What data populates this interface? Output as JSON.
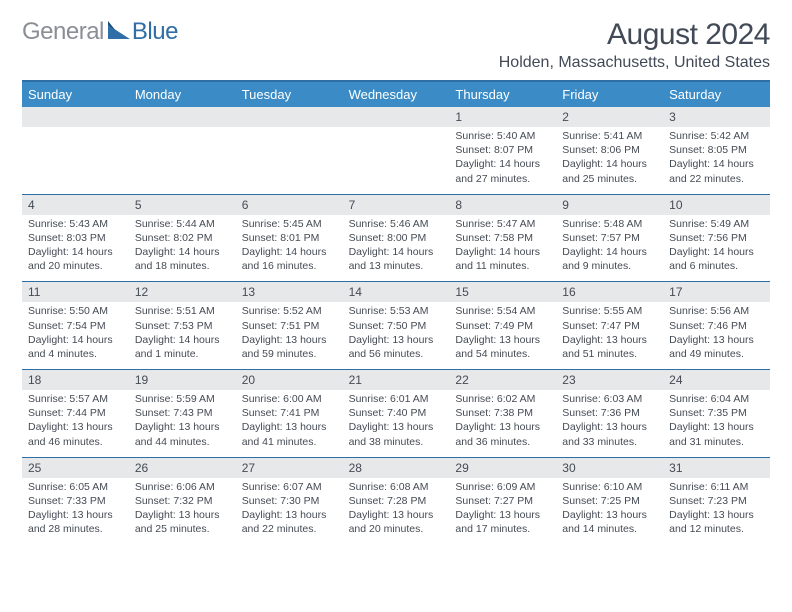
{
  "brand": {
    "general": "General",
    "blue": "Blue"
  },
  "title": "August 2024",
  "location": "Holden, Massachusetts, United States",
  "colors": {
    "header_bg": "#3b8cc6",
    "divider": "#2d6ea5",
    "date_bg": "#e7e8ea",
    "text": "#454b54",
    "logo_gray": "#8a8f96",
    "logo_blue": "#2f6ea7"
  },
  "weekdays": [
    "Sunday",
    "Monday",
    "Tuesday",
    "Wednesday",
    "Thursday",
    "Friday",
    "Saturday"
  ],
  "weeks": [
    {
      "dates": [
        "",
        "",
        "",
        "",
        "1",
        "2",
        "3"
      ],
      "cells": [
        {
          "sunrise": "",
          "sunset": "",
          "daylight1": "",
          "daylight2": ""
        },
        {
          "sunrise": "",
          "sunset": "",
          "daylight1": "",
          "daylight2": ""
        },
        {
          "sunrise": "",
          "sunset": "",
          "daylight1": "",
          "daylight2": ""
        },
        {
          "sunrise": "",
          "sunset": "",
          "daylight1": "",
          "daylight2": ""
        },
        {
          "sunrise": "Sunrise: 5:40 AM",
          "sunset": "Sunset: 8:07 PM",
          "daylight1": "Daylight: 14 hours",
          "daylight2": "and 27 minutes."
        },
        {
          "sunrise": "Sunrise: 5:41 AM",
          "sunset": "Sunset: 8:06 PM",
          "daylight1": "Daylight: 14 hours",
          "daylight2": "and 25 minutes."
        },
        {
          "sunrise": "Sunrise: 5:42 AM",
          "sunset": "Sunset: 8:05 PM",
          "daylight1": "Daylight: 14 hours",
          "daylight2": "and 22 minutes."
        }
      ]
    },
    {
      "dates": [
        "4",
        "5",
        "6",
        "7",
        "8",
        "9",
        "10"
      ],
      "cells": [
        {
          "sunrise": "Sunrise: 5:43 AM",
          "sunset": "Sunset: 8:03 PM",
          "daylight1": "Daylight: 14 hours",
          "daylight2": "and 20 minutes."
        },
        {
          "sunrise": "Sunrise: 5:44 AM",
          "sunset": "Sunset: 8:02 PM",
          "daylight1": "Daylight: 14 hours",
          "daylight2": "and 18 minutes."
        },
        {
          "sunrise": "Sunrise: 5:45 AM",
          "sunset": "Sunset: 8:01 PM",
          "daylight1": "Daylight: 14 hours",
          "daylight2": "and 16 minutes."
        },
        {
          "sunrise": "Sunrise: 5:46 AM",
          "sunset": "Sunset: 8:00 PM",
          "daylight1": "Daylight: 14 hours",
          "daylight2": "and 13 minutes."
        },
        {
          "sunrise": "Sunrise: 5:47 AM",
          "sunset": "Sunset: 7:58 PM",
          "daylight1": "Daylight: 14 hours",
          "daylight2": "and 11 minutes."
        },
        {
          "sunrise": "Sunrise: 5:48 AM",
          "sunset": "Sunset: 7:57 PM",
          "daylight1": "Daylight: 14 hours",
          "daylight2": "and 9 minutes."
        },
        {
          "sunrise": "Sunrise: 5:49 AM",
          "sunset": "Sunset: 7:56 PM",
          "daylight1": "Daylight: 14 hours",
          "daylight2": "and 6 minutes."
        }
      ]
    },
    {
      "dates": [
        "11",
        "12",
        "13",
        "14",
        "15",
        "16",
        "17"
      ],
      "cells": [
        {
          "sunrise": "Sunrise: 5:50 AM",
          "sunset": "Sunset: 7:54 PM",
          "daylight1": "Daylight: 14 hours",
          "daylight2": "and 4 minutes."
        },
        {
          "sunrise": "Sunrise: 5:51 AM",
          "sunset": "Sunset: 7:53 PM",
          "daylight1": "Daylight: 14 hours",
          "daylight2": "and 1 minute."
        },
        {
          "sunrise": "Sunrise: 5:52 AM",
          "sunset": "Sunset: 7:51 PM",
          "daylight1": "Daylight: 13 hours",
          "daylight2": "and 59 minutes."
        },
        {
          "sunrise": "Sunrise: 5:53 AM",
          "sunset": "Sunset: 7:50 PM",
          "daylight1": "Daylight: 13 hours",
          "daylight2": "and 56 minutes."
        },
        {
          "sunrise": "Sunrise: 5:54 AM",
          "sunset": "Sunset: 7:49 PM",
          "daylight1": "Daylight: 13 hours",
          "daylight2": "and 54 minutes."
        },
        {
          "sunrise": "Sunrise: 5:55 AM",
          "sunset": "Sunset: 7:47 PM",
          "daylight1": "Daylight: 13 hours",
          "daylight2": "and 51 minutes."
        },
        {
          "sunrise": "Sunrise: 5:56 AM",
          "sunset": "Sunset: 7:46 PM",
          "daylight1": "Daylight: 13 hours",
          "daylight2": "and 49 minutes."
        }
      ]
    },
    {
      "dates": [
        "18",
        "19",
        "20",
        "21",
        "22",
        "23",
        "24"
      ],
      "cells": [
        {
          "sunrise": "Sunrise: 5:57 AM",
          "sunset": "Sunset: 7:44 PM",
          "daylight1": "Daylight: 13 hours",
          "daylight2": "and 46 minutes."
        },
        {
          "sunrise": "Sunrise: 5:59 AM",
          "sunset": "Sunset: 7:43 PM",
          "daylight1": "Daylight: 13 hours",
          "daylight2": "and 44 minutes."
        },
        {
          "sunrise": "Sunrise: 6:00 AM",
          "sunset": "Sunset: 7:41 PM",
          "daylight1": "Daylight: 13 hours",
          "daylight2": "and 41 minutes."
        },
        {
          "sunrise": "Sunrise: 6:01 AM",
          "sunset": "Sunset: 7:40 PM",
          "daylight1": "Daylight: 13 hours",
          "daylight2": "and 38 minutes."
        },
        {
          "sunrise": "Sunrise: 6:02 AM",
          "sunset": "Sunset: 7:38 PM",
          "daylight1": "Daylight: 13 hours",
          "daylight2": "and 36 minutes."
        },
        {
          "sunrise": "Sunrise: 6:03 AM",
          "sunset": "Sunset: 7:36 PM",
          "daylight1": "Daylight: 13 hours",
          "daylight2": "and 33 minutes."
        },
        {
          "sunrise": "Sunrise: 6:04 AM",
          "sunset": "Sunset: 7:35 PM",
          "daylight1": "Daylight: 13 hours",
          "daylight2": "and 31 minutes."
        }
      ]
    },
    {
      "dates": [
        "25",
        "26",
        "27",
        "28",
        "29",
        "30",
        "31"
      ],
      "cells": [
        {
          "sunrise": "Sunrise: 6:05 AM",
          "sunset": "Sunset: 7:33 PM",
          "daylight1": "Daylight: 13 hours",
          "daylight2": "and 28 minutes."
        },
        {
          "sunrise": "Sunrise: 6:06 AM",
          "sunset": "Sunset: 7:32 PM",
          "daylight1": "Daylight: 13 hours",
          "daylight2": "and 25 minutes."
        },
        {
          "sunrise": "Sunrise: 6:07 AM",
          "sunset": "Sunset: 7:30 PM",
          "daylight1": "Daylight: 13 hours",
          "daylight2": "and 22 minutes."
        },
        {
          "sunrise": "Sunrise: 6:08 AM",
          "sunset": "Sunset: 7:28 PM",
          "daylight1": "Daylight: 13 hours",
          "daylight2": "and 20 minutes."
        },
        {
          "sunrise": "Sunrise: 6:09 AM",
          "sunset": "Sunset: 7:27 PM",
          "daylight1": "Daylight: 13 hours",
          "daylight2": "and 17 minutes."
        },
        {
          "sunrise": "Sunrise: 6:10 AM",
          "sunset": "Sunset: 7:25 PM",
          "daylight1": "Daylight: 13 hours",
          "daylight2": "and 14 minutes."
        },
        {
          "sunrise": "Sunrise: 6:11 AM",
          "sunset": "Sunset: 7:23 PM",
          "daylight1": "Daylight: 13 hours",
          "daylight2": "and 12 minutes."
        }
      ]
    }
  ]
}
